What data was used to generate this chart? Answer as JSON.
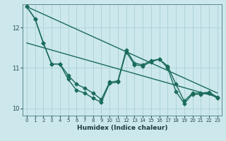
{
  "xlabel": "Humidex (Indice chaleur)",
  "bg_color": "#cce8ec",
  "line_color": "#1a6b5a",
  "grid_color": "#aad0d8",
  "xlim": [
    -0.5,
    23.5
  ],
  "ylim": [
    9.82,
    12.58
  ],
  "yticks": [
    10,
    11,
    12
  ],
  "xticks": [
    0,
    1,
    2,
    3,
    4,
    5,
    6,
    7,
    8,
    9,
    10,
    11,
    12,
    13,
    14,
    15,
    16,
    17,
    18,
    19,
    20,
    21,
    22,
    23
  ],
  "series1_x": [
    0,
    1,
    2,
    3,
    4,
    5,
    6,
    7,
    8,
    9,
    10,
    11,
    12,
    13,
    14,
    15,
    16,
    17,
    18,
    19,
    20,
    21,
    22,
    23
  ],
  "series1_y": [
    12.52,
    12.22,
    11.62,
    11.1,
    11.1,
    10.82,
    10.6,
    10.5,
    10.38,
    10.22,
    10.65,
    10.68,
    11.45,
    11.12,
    11.08,
    11.18,
    11.22,
    11.05,
    10.6,
    10.18,
    10.38,
    10.38,
    10.4,
    10.28
  ],
  "series2_x": [
    0,
    1,
    2,
    3,
    4,
    5,
    6,
    7,
    8,
    9,
    10,
    11,
    12,
    13,
    14,
    15,
    16,
    17,
    18,
    19,
    20,
    21,
    22,
    23
  ],
  "series2_y": [
    12.52,
    12.22,
    11.62,
    11.1,
    11.1,
    10.72,
    10.45,
    10.38,
    10.25,
    10.15,
    10.62,
    10.65,
    11.4,
    11.08,
    11.05,
    11.15,
    11.22,
    11.0,
    10.42,
    10.12,
    10.35,
    10.35,
    10.38,
    10.25
  ],
  "trend1_start_y": 12.52,
  "trend1_end_y": 10.38,
  "trend2_start_y": 11.62,
  "trend2_end_y": 10.28,
  "marker": "D",
  "marker_size": 2.5,
  "linewidth": 1.0
}
